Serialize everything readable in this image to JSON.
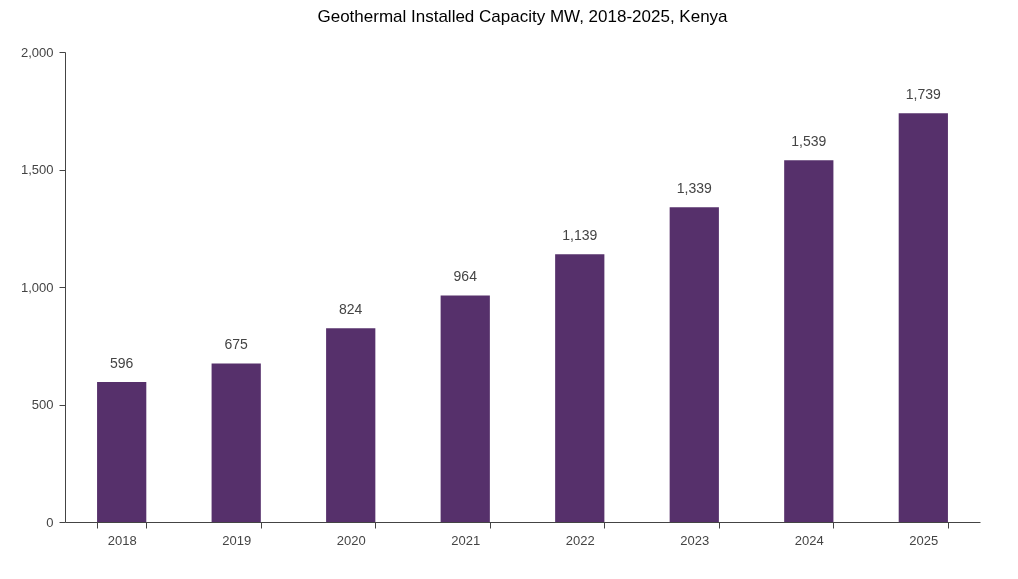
{
  "chart_data": {
    "type": "bar",
    "title": "Geothermal Installed Capacity MW, 2018-2025, Kenya",
    "categories": [
      "2018",
      "2019",
      "2020",
      "2021",
      "2022",
      "2023",
      "2024",
      "2025"
    ],
    "values": [
      596,
      675,
      824,
      964,
      1139,
      1339,
      1539,
      1739
    ],
    "value_labels": [
      "596",
      "675",
      "824",
      "964",
      "1,139",
      "1,339",
      "1,539",
      "1,739"
    ],
    "color": "#56306b",
    "ylim": [
      0,
      2000
    ],
    "yticks": [
      0,
      500,
      {
        "value": 1000,
        "label": "1,000"
      },
      {
        "value": 1500,
        "label": "1,500"
      },
      {
        "value": 2000,
        "label": "2,000"
      }
    ],
    "grid": false
  }
}
